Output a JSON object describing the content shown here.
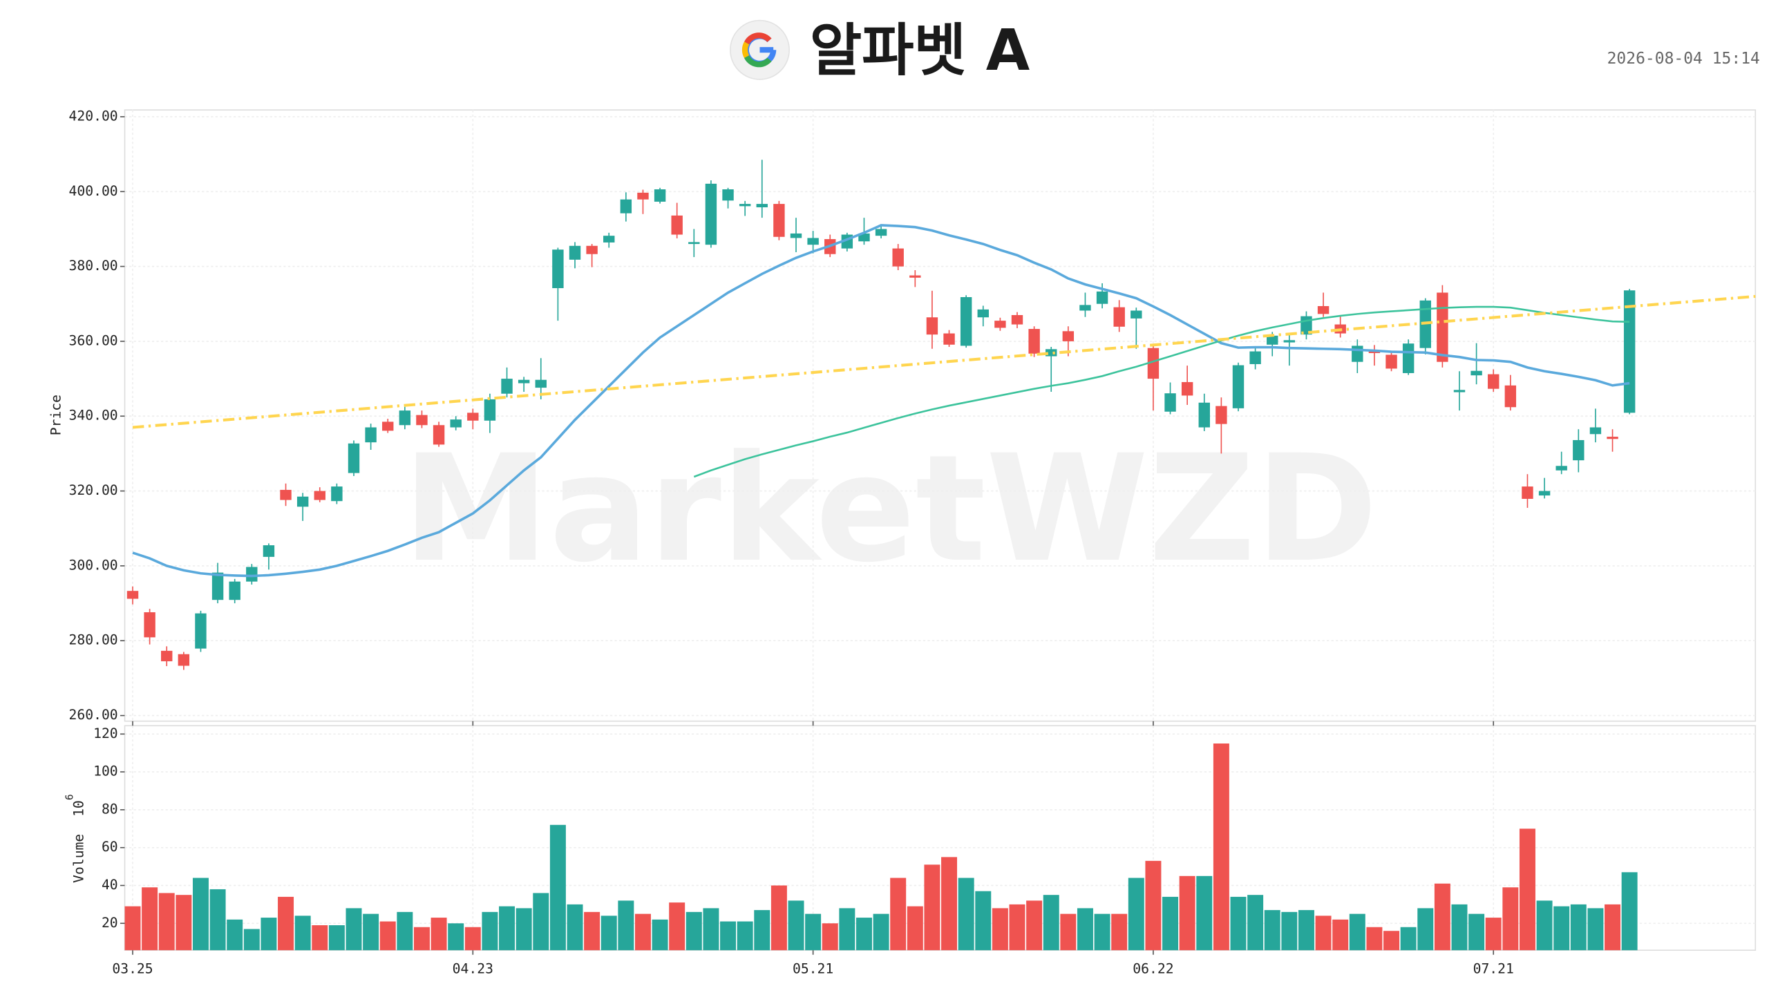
{
  "chart_data": {
    "type": "candlestick",
    "title": "알파벳 A",
    "timestamp": "2026-08-04 15:14",
    "watermark": "MarketWZD",
    "categories": [
      "03.25",
      null,
      null,
      null,
      null,
      null,
      null,
      null,
      null,
      null,
      null,
      null,
      null,
      null,
      null,
      null,
      null,
      null,
      null,
      null,
      "04.23",
      null,
      null,
      null,
      null,
      null,
      null,
      null,
      null,
      null,
      null,
      null,
      null,
      null,
      null,
      null,
      null,
      null,
      null,
      null,
      "05.21",
      null,
      null,
      null,
      null,
      null,
      null,
      null,
      null,
      null,
      null,
      null,
      null,
      null,
      null,
      null,
      null,
      null,
      null,
      null,
      "06.22",
      null,
      null,
      null,
      null,
      null,
      null,
      null,
      null,
      null,
      null,
      null,
      null,
      null,
      null,
      null,
      null,
      null,
      null,
      null,
      "07.21",
      null,
      null,
      null,
      null,
      null,
      null,
      null,
      null
    ],
    "open": [
      293.3,
      287.6,
      277.3,
      276.4,
      277.9,
      290.9,
      290.9,
      295.8,
      302.4,
      320.3,
      315.8,
      320,
      317.3,
      324.8,
      333,
      338.5,
      337.6,
      340.3,
      337.6,
      337,
      340.9,
      338.8,
      346,
      348.8,
      347.6,
      374.2,
      381.8,
      385.5,
      386.4,
      394.2,
      399.7,
      397.3,
      393.6,
      386,
      385.8,
      397.6,
      396.1,
      395.8,
      396.7,
      387.6,
      385.8,
      387.3,
      384.8,
      386.7,
      388.2,
      384.8,
      377.6,
      366.4,
      362.1,
      358.8,
      366.4,
      365.5,
      367,
      363.3,
      356,
      362.7,
      368.2,
      370,
      369.1,
      366.1,
      358.2,
      341.2,
      349.1,
      337,
      342.7,
      342.1,
      353.9,
      359.1,
      359.7,
      361.8,
      369.4,
      364.5,
      354.5,
      357.3,
      356.4,
      351.5,
      358.2,
      373,
      346.4,
      350.9,
      351.2,
      348.2,
      321.2,
      318.8,
      325.5,
      328.2,
      335.2,
      334.5,
      340.9
    ],
    "high": [
      294.5,
      288.5,
      278.5,
      277,
      288,
      300.8,
      296.5,
      300.5,
      306,
      322,
      319.5,
      321,
      322,
      333.5,
      338,
      339.3,
      342.5,
      341.5,
      338.5,
      340,
      342,
      346,
      353,
      350.5,
      355.5,
      385,
      386.5,
      386,
      389,
      399.8,
      400.5,
      401,
      397,
      390,
      403,
      401,
      397.5,
      408.5,
      397.5,
      393,
      389.5,
      388.5,
      389,
      393,
      391,
      386,
      379,
      373.5,
      363,
      372.3,
      369.5,
      366.3,
      367.8,
      364,
      358.5,
      364,
      373,
      375.5,
      371,
      369,
      359,
      349,
      353.5,
      346,
      345,
      354.3,
      358.5,
      362.5,
      362,
      368,
      373,
      367,
      360.5,
      359,
      357,
      360.5,
      371.5,
      375,
      352,
      359.5,
      352.5,
      351,
      324.5,
      323.5,
      330.5,
      336.5,
      342,
      336.5,
      374
    ],
    "low": [
      289.7,
      279,
      273.2,
      272.2,
      277,
      290,
      290,
      295,
      299,
      316,
      312,
      317,
      316.5,
      324,
      331,
      335.5,
      336.5,
      336.8,
      331.8,
      336.2,
      336.5,
      335.5,
      345,
      346.5,
      344.5,
      365.5,
      379.5,
      379.8,
      385,
      392,
      394,
      396.8,
      387.5,
      382.5,
      385,
      395.5,
      393.5,
      393,
      387,
      383.8,
      383.5,
      382.5,
      384,
      385.8,
      387.5,
      379,
      374.5,
      358,
      358.5,
      358.3,
      364,
      362.8,
      363.5,
      355.8,
      346.5,
      356,
      366.5,
      368.8,
      362.5,
      358,
      341.5,
      340.5,
      343,
      336,
      330,
      341.3,
      352.5,
      356,
      353.5,
      360.5,
      366.5,
      361,
      351.5,
      353.5,
      352,
      351,
      356.5,
      353,
      341.5,
      348.5,
      346.5,
      341.5,
      315.5,
      318,
      324.5,
      325,
      333,
      330.5,
      340.5
    ],
    "close": [
      291.2,
      280.9,
      274.5,
      273.3,
      287.3,
      298.2,
      295.8,
      299.7,
      305.5,
      317.6,
      318.5,
      317.6,
      321.2,
      332.7,
      337,
      336.1,
      341.5,
      337.6,
      332.4,
      339.1,
      338.8,
      344.5,
      350,
      349.7,
      349.7,
      384.5,
      385.5,
      383.3,
      388.2,
      397.9,
      397.9,
      400.6,
      388.5,
      386.5,
      402.1,
      400.6,
      396.7,
      396.7,
      387.9,
      388.8,
      387.6,
      383.3,
      388.5,
      388.8,
      390,
      380,
      377,
      361.8,
      359.1,
      371.8,
      368.5,
      363.6,
      364.5,
      356.7,
      357.9,
      360,
      369.7,
      373.3,
      363.9,
      368.2,
      350,
      346.1,
      345.5,
      343.6,
      337.9,
      353.6,
      357.3,
      361.5,
      360.3,
      366.7,
      367.3,
      362.1,
      358.8,
      357,
      352.7,
      359.4,
      370.9,
      354.5,
      347,
      352.1,
      347.3,
      342.4,
      317.9,
      320,
      326.7,
      333.6,
      337,
      333.9,
      373.6
    ],
    "up_color": "#26a69a",
    "down_color": "#ef5350",
    "ylabel": "Price",
    "ylim": [
      258.5,
      421.8
    ],
    "yticks": [
      {
        "value": 260,
        "label": "260.00"
      },
      {
        "value": 280,
        "label": "280.00"
      },
      {
        "value": 300,
        "label": "300.00"
      },
      {
        "value": 320,
        "label": "320.00"
      },
      {
        "value": 340,
        "label": "340.00"
      },
      {
        "value": 360,
        "label": "360.00"
      },
      {
        "value": 380,
        "label": "380.00"
      },
      {
        "value": 400,
        "label": "400.00"
      },
      {
        "value": 420,
        "label": "420.00"
      }
    ],
    "overlays": [
      {
        "color": "#5aa9dc",
        "values": [
          303.5,
          302,
          300,
          298.8,
          298,
          297.6,
          297.4,
          297.3,
          297.5,
          297.9,
          298.4,
          299,
          300,
          301.3,
          302.6,
          304,
          305.7,
          307.5,
          309,
          311.5,
          314,
          317.5,
          321.5,
          325.5,
          329,
          334,
          339,
          343.5,
          348,
          352.5,
          357,
          361,
          364,
          367,
          370,
          373,
          375.5,
          378,
          380.2,
          382.3,
          384,
          385.5,
          387.2,
          389,
          391,
          390.8,
          390.5,
          389.6,
          388.3,
          387.2,
          386,
          384.4,
          383,
          381,
          379.2,
          376.8,
          375.2,
          374,
          372.8,
          371.5,
          369.3,
          367,
          364.5,
          362,
          359.5,
          358.3,
          358.4,
          358.4,
          358.2,
          358.1,
          358,
          357.9,
          357.7,
          357.5,
          357.2,
          357.1,
          357,
          356.3,
          355.8,
          355,
          354.9,
          354.5,
          353,
          352,
          351.3,
          350.5,
          349.6,
          348.2,
          348.8
        ]
      },
      {
        "color": "#3cc39c",
        "values": [
          null,
          null,
          null,
          null,
          null,
          null,
          null,
          null,
          null,
          null,
          null,
          null,
          null,
          null,
          null,
          null,
          null,
          null,
          null,
          null,
          null,
          null,
          null,
          null,
          null,
          null,
          null,
          null,
          null,
          null,
          null,
          null,
          null,
          323.8,
          325.5,
          327,
          328.5,
          329.8,
          331,
          332.2,
          333.3,
          334.5,
          335.6,
          336.9,
          338.2,
          339.5,
          340.7,
          341.8,
          342.8,
          343.7,
          344.6,
          345.5,
          346.4,
          347.3,
          348.1,
          348.8,
          349.7,
          350.7,
          352,
          353.2,
          354.6,
          356,
          357.4,
          358.8,
          360.2,
          361.5,
          362.7,
          363.7,
          364.6,
          365.5,
          366.2,
          366.8,
          367.3,
          367.7,
          368,
          368.3,
          368.6,
          368.9,
          369.1,
          369.2,
          369.2,
          369,
          368.3,
          367.6,
          367,
          366.4,
          365.8,
          365.3,
          365.2
        ]
      }
    ],
    "trendline": {
      "color": "#ffd54f",
      "start": 337,
      "end": 372
    },
    "volume": {
      "ylabel": "Volume",
      "unit_base": "10",
      "unit_exp": "6",
      "ylim": [
        5.8,
        124.4
      ],
      "yticks": [
        20,
        40,
        60,
        80,
        100,
        120
      ],
      "values": [
        29,
        39,
        36,
        35,
        44,
        38,
        22,
        17,
        23,
        34,
        24,
        19,
        19,
        28,
        25,
        21,
        26,
        18,
        23,
        20,
        18,
        26,
        29,
        28,
        36,
        72,
        30,
        26,
        24,
        32,
        25,
        22,
        31,
        26,
        28,
        21,
        21,
        27,
        40,
        32,
        25,
        20,
        28,
        23,
        25,
        44,
        29,
        51,
        55,
        44,
        37,
        28,
        30,
        32,
        35,
        25,
        28,
        25,
        25,
        44,
        53,
        34,
        45,
        45,
        115,
        34,
        35,
        27,
        26,
        27,
        24,
        22,
        25,
        18,
        16,
        18,
        28,
        41,
        30,
        25,
        23,
        39,
        70,
        32,
        29,
        30,
        28,
        30,
        47
      ]
    },
    "grid": true
  }
}
